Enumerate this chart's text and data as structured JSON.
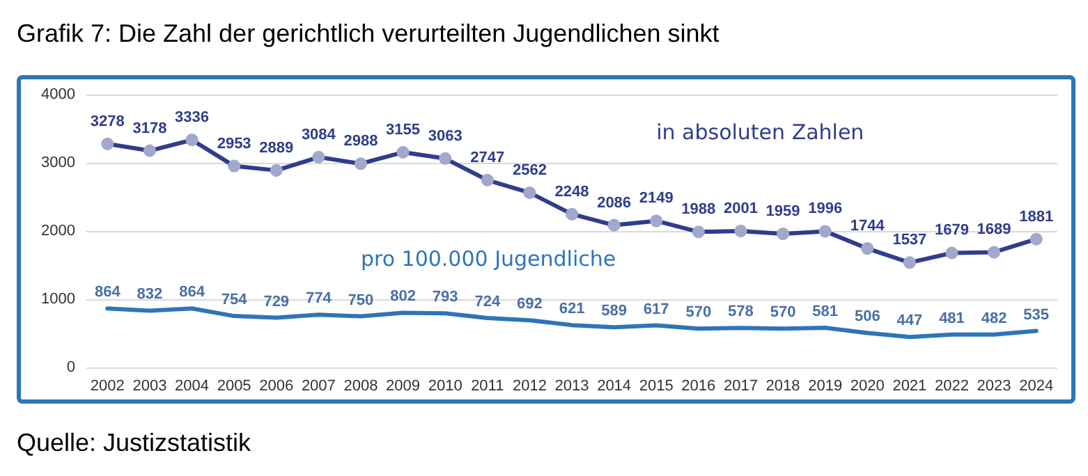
{
  "chart_data": {
    "type": "line",
    "title": "Grafik 7: Die Zahl der gerichtlich verurteilten Jugendlichen sinkt",
    "annotations": [
      "Quelle: Justizstatistik"
    ],
    "categories": [
      "2002",
      "2003",
      "2004",
      "2005",
      "2006",
      "2007",
      "2008",
      "2009",
      "2010",
      "2011",
      "2012",
      "2013",
      "2014",
      "2015",
      "2016",
      "2017",
      "2018",
      "2019",
      "2020",
      "2021",
      "2022",
      "2023",
      "2024"
    ],
    "series": [
      {
        "name": "in absoluten Zahlen",
        "color": "#2f3d8c",
        "marker": "circle",
        "values": [
          3278,
          3178,
          3336,
          2953,
          2889,
          3084,
          2988,
          3155,
          3063,
          2747,
          2562,
          2248,
          2086,
          2149,
          1988,
          2001,
          1959,
          1996,
          1744,
          1537,
          1679,
          1689,
          1881
        ]
      },
      {
        "name": "pro 100.000 Jugendliche",
        "color": "#2e75b6",
        "marker": "none",
        "values": [
          864,
          832,
          864,
          754,
          729,
          774,
          750,
          802,
          793,
          724,
          692,
          621,
          589,
          617,
          570,
          578,
          570,
          581,
          506,
          447,
          481,
          482,
          535
        ]
      }
    ],
    "ylim": [
      0,
      4000
    ],
    "yticks": [
      0,
      1000,
      2000,
      3000,
      4000
    ],
    "grid": "y",
    "data_labels": true,
    "legend": false
  }
}
